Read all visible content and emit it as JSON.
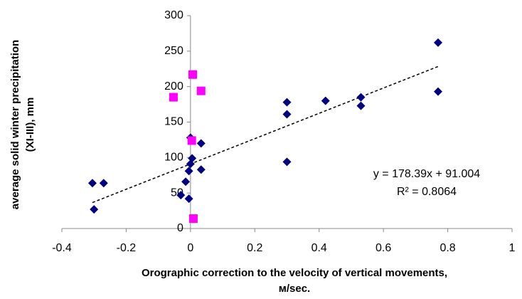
{
  "chart_data": {
    "type": "scatter",
    "xlabel": [
      "Orographic correction to the velocity of vertical movements,",
      "м/sec."
    ],
    "ylabel": [
      "average solid winter precipitation",
      "(XI-III), mm"
    ],
    "xlim": [
      -0.4,
      1
    ],
    "xticks": [
      -0.4,
      -0.2,
      0,
      0.2,
      0.4,
      0.6,
      0.8,
      1
    ],
    "ylim": [
      0,
      300
    ],
    "yticks": [
      0,
      50,
      100,
      150,
      200,
      250,
      300
    ],
    "grid": false,
    "series": [
      {
        "color": "#000080",
        "marker": "diamond",
        "x": [
          -0.305,
          -0.27,
          -0.3,
          -0.03,
          -0.015,
          -0.005,
          -0.005,
          0,
          0.005,
          0,
          0.033,
          0.033,
          0.3,
          0.3,
          0.3,
          0.42,
          0.53,
          0.53,
          0.77,
          0.77
        ],
        "values": [
          64,
          64,
          27,
          47,
          66,
          42,
          81,
          128,
          99,
          91,
          120,
          83,
          178,
          161,
          94,
          180,
          185,
          173,
          262,
          193
        ]
      },
      {
        "color": "#ff00ff",
        "marker": "square",
        "x": [
          -0.053,
          0.007,
          0.033,
          0.004,
          0.009
        ],
        "values": [
          185,
          217,
          194,
          124,
          14
        ]
      }
    ],
    "trendline": {
      "slope": 178.39,
      "intercept": 91.004,
      "label": "y = 178.39x + 91.004",
      "r2_label": "R² = 0.8064"
    }
  }
}
